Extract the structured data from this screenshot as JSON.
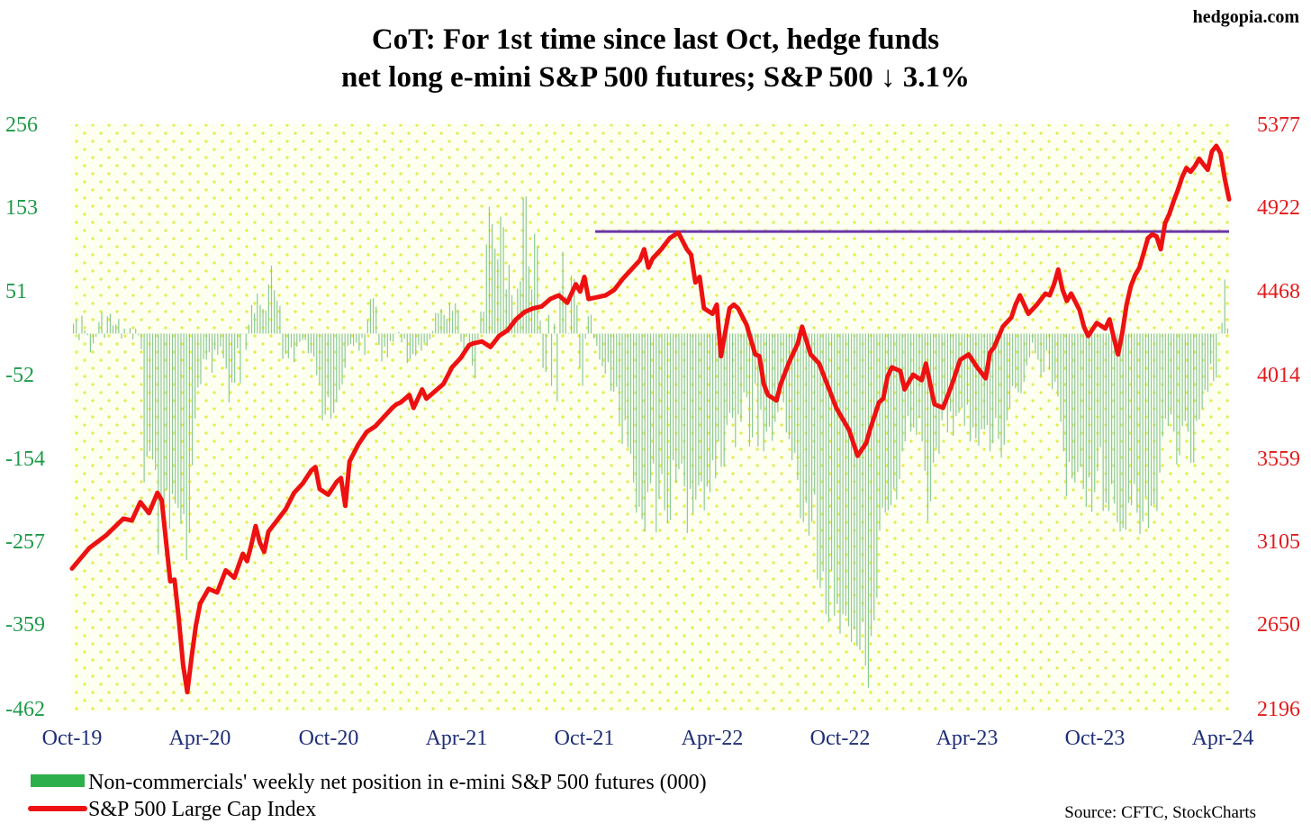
{
  "chart_data": {
    "type": "bar+line",
    "title_lines": [
      "CoT: For 1st time since last Oct, hedge funds",
      "net long e-mini S&P 500 futures; S&P 500 ↓ 3.1%"
    ],
    "brand": "hedgopia.com",
    "source": "Source: CFTC, StockCharts",
    "left_axis": {
      "ticks": [
        "256",
        "153",
        "51",
        "-52",
        "-154",
        "-257",
        "-359",
        "-462"
      ],
      "ylim": [
        -462,
        256
      ],
      "color": "#1e9a4a"
    },
    "right_axis": {
      "ticks": [
        "5377",
        "4922",
        "4468",
        "4014",
        "3559",
        "3105",
        "2650",
        "2196"
      ],
      "ylim": [
        2196,
        5377
      ],
      "color": "#e31b1b"
    },
    "x_labels": [
      "Oct-19",
      "Apr-20",
      "Oct-20",
      "Apr-21",
      "Oct-21",
      "Apr-22",
      "Oct-22",
      "Apr-23",
      "Oct-23",
      "Apr-24"
    ],
    "x_range_weeks": [
      0,
      230
    ],
    "horizontal_line": {
      "value_right": 4796,
      "from_week": 104,
      "to_week": 230,
      "color": "#6a35a8"
    },
    "legend": [
      {
        "label": "Non-commercials' weekly net position in e-mini S&P 500 futures (000)",
        "color": "#2db04b"
      },
      {
        "label": "S&P 500 Large Cap Index",
        "color": "#ee1111"
      }
    ],
    "series": [
      {
        "name": "Non-commercials' weekly net position in e-mini S&P 500 futures (000)",
        "axis": "left",
        "kind": "bar",
        "color": "#8cc99a",
        "weekly_values": [
          12,
          17,
          -8,
          22,
          4,
          -2,
          -23,
          -12,
          -4,
          14,
          26,
          -5,
          21,
          24,
          10,
          11,
          18,
          -6,
          6,
          0,
          7,
          -7,
          6,
          -2,
          -19,
          -182,
          -151,
          -144,
          -154,
          -167,
          -270,
          -205,
          -224,
          -191,
          -239,
          -196,
          -208,
          -213,
          -233,
          -221,
          -277,
          -244,
          -161,
          -104,
          -66,
          -62,
          -31,
          -32,
          -23,
          -48,
          -20,
          -26,
          -16,
          -30,
          -43,
          -84,
          -60,
          -60,
          -18,
          -61,
          0,
          -20,
          11,
          35,
          25,
          49,
          35,
          30,
          28,
          60,
          83,
          53,
          40,
          34,
          -31,
          -25,
          -30,
          -17,
          -35,
          -16,
          -10,
          -8,
          -8,
          -24,
          -24,
          -28,
          -51,
          -62,
          -106,
          -99,
          -78,
          -104,
          -97,
          -84,
          -69,
          -62,
          -42,
          -15,
          -13,
          -15,
          -11,
          -21,
          -5,
          -26,
          17,
          42,
          43,
          33,
          -14,
          -34,
          -16,
          -29,
          -9,
          -10,
          0,
          2,
          -11,
          -6,
          -36,
          -31,
          -25,
          -27,
          -14,
          -21,
          -11,
          -15,
          -7,
          3,
          25,
          25,
          30,
          23,
          18,
          37,
          28,
          37,
          29,
          -10,
          -31,
          -2,
          -11,
          -39,
          -55,
          -7,
          27,
          27,
          109,
          155,
          134,
          104,
          91,
          143,
          130,
          54,
          84,
          47,
          13,
          55,
          64,
          166,
          168,
          82,
          54,
          122,
          107,
          16,
          -42,
          -47,
          23,
          -64,
          12,
          -83,
          52,
          100,
          46,
          0,
          71,
          67,
          35,
          -42,
          -64,
          -6,
          21,
          23,
          -6,
          -15,
          -32,
          -40,
          -49,
          -35,
          -70,
          -71,
          -65,
          -110,
          -135,
          -106,
          -139,
          -147,
          -182,
          -219,
          -212,
          -227,
          -242,
          -194,
          -183,
          -159,
          -243,
          -202,
          -172,
          -216,
          -232,
          -228,
          -155,
          -182,
          -166,
          -159,
          -187,
          -244,
          -190,
          -220,
          -203,
          -186,
          -181,
          -216,
          -187,
          -194,
          -155,
          -177,
          -132,
          -163,
          -162,
          -112,
          -97,
          -103,
          -139,
          -99,
          -108,
          -72,
          -78,
          -138,
          -127,
          -61,
          -138,
          -93,
          -144,
          -120,
          -114,
          -131,
          -108,
          -96,
          -70,
          -84,
          -121,
          -129,
          -155,
          -146,
          -179,
          -226,
          -231,
          -207,
          -247,
          -230,
          -197,
          -301,
          -311,
          -291,
          -343,
          -353,
          -290,
          -345,
          -331,
          -367,
          -343,
          -345,
          -358,
          -377,
          -362,
          -382,
          -387,
          -353,
          -406,
          -433,
          -370,
          -351,
          -323,
          -241,
          -213,
          -219,
          -216,
          -210,
          -190,
          -203,
          -178,
          -144,
          -132,
          -101,
          -120,
          -115,
          -124,
          -103,
          -132,
          -168,
          -229,
          -205,
          -158,
          -140,
          -147,
          -106,
          -77,
          -121,
          -95,
          -125,
          -101,
          -97,
          -91,
          -113,
          -87,
          -132,
          -115,
          -128,
          -137,
          -117,
          -117,
          -112,
          -144,
          -134,
          -103,
          -129,
          -152,
          -136,
          -106,
          -92,
          -64,
          -67,
          -72,
          -73,
          -59,
          -39,
          -29,
          -11,
          -24,
          -32,
          -52,
          -47,
          -21,
          -44,
          -68,
          -59,
          -77,
          -108,
          -144,
          -199,
          -157,
          -177,
          -182,
          -169,
          -163,
          -190,
          -212,
          -176,
          -218,
          -194,
          -168,
          -139,
          -217,
          -207,
          -217,
          -184,
          -208,
          -231,
          -242,
          -238,
          -240,
          -207,
          -210,
          -184,
          -219,
          -245,
          -230,
          -200,
          -238,
          -211,
          -209,
          -217,
          -170,
          -126,
          -104,
          -113,
          -99,
          -120,
          -160,
          -149,
          -113,
          -107,
          -120,
          -158,
          -158,
          -107,
          -105,
          -92,
          -69,
          -71,
          -37,
          -58,
          -54,
          1,
          13,
          66,
          6
        ]
      },
      {
        "name": "S&P 500 Large Cap Index",
        "axis": "right",
        "kind": "line",
        "color": "#ee1111",
        "anchors": [
          [
            0,
            2970
          ],
          [
            4,
            3080
          ],
          [
            8,
            3150
          ],
          [
            12,
            3240
          ],
          [
            14,
            3230
          ],
          [
            16,
            3330
          ],
          [
            18,
            3270
          ],
          [
            20,
            3380
          ],
          [
            21,
            3340
          ],
          [
            23,
            2900
          ],
          [
            24,
            2910
          ],
          [
            25,
            2700
          ],
          [
            26,
            2450
          ],
          [
            27,
            2300
          ],
          [
            28,
            2490
          ],
          [
            29,
            2660
          ],
          [
            30,
            2780
          ],
          [
            32,
            2860
          ],
          [
            34,
            2840
          ],
          [
            36,
            2960
          ],
          [
            38,
            2920
          ],
          [
            40,
            3050
          ],
          [
            41,
            3010
          ],
          [
            42,
            3100
          ],
          [
            43,
            3200
          ],
          [
            44,
            3110
          ],
          [
            45,
            3060
          ],
          [
            46,
            3170
          ],
          [
            48,
            3230
          ],
          [
            50,
            3290
          ],
          [
            52,
            3380
          ],
          [
            54,
            3430
          ],
          [
            56,
            3500
          ],
          [
            57,
            3520
          ],
          [
            58,
            3400
          ],
          [
            60,
            3370
          ],
          [
            62,
            3440
          ],
          [
            63,
            3460
          ],
          [
            64,
            3310
          ],
          [
            65,
            3550
          ],
          [
            67,
            3640
          ],
          [
            69,
            3710
          ],
          [
            71,
            3740
          ],
          [
            73,
            3790
          ],
          [
            75,
            3840
          ],
          [
            76,
            3860
          ],
          [
            77,
            3870
          ],
          [
            79,
            3910
          ],
          [
            80,
            3840
          ],
          [
            82,
            3940
          ],
          [
            83,
            3890
          ],
          [
            85,
            3930
          ],
          [
            87,
            3970
          ],
          [
            89,
            4060
          ],
          [
            91,
            4110
          ],
          [
            93,
            4180
          ],
          [
            94,
            4190
          ],
          [
            96,
            4200
          ],
          [
            98,
            4170
          ],
          [
            100,
            4230
          ],
          [
            102,
            4260
          ],
          [
            104,
            4320
          ],
          [
            106,
            4360
          ],
          [
            108,
            4380
          ],
          [
            110,
            4390
          ],
          [
            112,
            4430
          ],
          [
            114,
            4450
          ],
          [
            116,
            4410
          ],
          [
            118,
            4510
          ],
          [
            119,
            4470
          ],
          [
            120,
            4550
          ],
          [
            121,
            4430
          ],
          [
            123,
            4440
          ],
          [
            125,
            4450
          ],
          [
            127,
            4480
          ],
          [
            129,
            4540
          ],
          [
            131,
            4590
          ],
          [
            133,
            4640
          ],
          [
            134,
            4700
          ],
          [
            135,
            4600
          ],
          [
            136,
            4650
          ],
          [
            138,
            4700
          ],
          [
            140,
            4760
          ],
          [
            142,
            4790
          ],
          [
            144,
            4700
          ],
          [
            145,
            4670
          ],
          [
            146,
            4520
          ],
          [
            147,
            4550
          ],
          [
            148,
            4380
          ],
          [
            150,
            4350
          ],
          [
            151,
            4400
          ],
          [
            152,
            4120
          ],
          [
            154,
            4380
          ],
          [
            155,
            4400
          ],
          [
            156,
            4380
          ],
          [
            158,
            4290
          ],
          [
            160,
            4130
          ],
          [
            161,
            4120
          ],
          [
            162,
            3970
          ],
          [
            163,
            3910
          ],
          [
            165,
            3880
          ],
          [
            166,
            3970
          ],
          [
            168,
            4090
          ],
          [
            170,
            4190
          ],
          [
            171,
            4280
          ],
          [
            173,
            4130
          ],
          [
            175,
            4080
          ],
          [
            177,
            3960
          ],
          [
            179,
            3840
          ],
          [
            180,
            3800
          ],
          [
            182,
            3720
          ],
          [
            184,
            3580
          ],
          [
            186,
            3650
          ],
          [
            187,
            3730
          ],
          [
            189,
            3870
          ],
          [
            190,
            3890
          ],
          [
            191,
            4010
          ],
          [
            192,
            4060
          ],
          [
            194,
            4040
          ],
          [
            195,
            3940
          ],
          [
            197,
            4020
          ],
          [
            199,
            3990
          ],
          [
            200,
            4080
          ],
          [
            202,
            3860
          ],
          [
            204,
            3840
          ],
          [
            206,
            3960
          ],
          [
            208,
            4100
          ],
          [
            210,
            4130
          ],
          [
            212,
            4060
          ],
          [
            214,
            4000
          ],
          [
            215,
            4140
          ],
          [
            216,
            4170
          ],
          [
            218,
            4280
          ],
          [
            220,
            4330
          ],
          [
            221,
            4400
          ],
          [
            222,
            4450
          ],
          [
            224,
            4350
          ],
          [
            226,
            4400
          ],
          [
            228,
            4460
          ],
          [
            229,
            4450
          ],
          [
            230,
            4510
          ],
          [
            231,
            4590
          ],
          [
            232,
            4480
          ],
          [
            233,
            4420
          ],
          [
            234,
            4460
          ],
          [
            236,
            4370
          ],
          [
            237,
            4280
          ],
          [
            238,
            4230
          ],
          [
            240,
            4300
          ],
          [
            242,
            4270
          ],
          [
            243,
            4320
          ],
          [
            244,
            4220
          ],
          [
            245,
            4130
          ],
          [
            246,
            4250
          ],
          [
            247,
            4400
          ],
          [
            248,
            4500
          ],
          [
            249,
            4560
          ],
          [
            250,
            4600
          ],
          [
            251,
            4680
          ],
          [
            252,
            4760
          ],
          [
            253,
            4780
          ],
          [
            254,
            4770
          ],
          [
            255,
            4700
          ],
          [
            256,
            4840
          ],
          [
            257,
            4890
          ],
          [
            258,
            4960
          ],
          [
            259,
            5020
          ],
          [
            260,
            5090
          ],
          [
            261,
            5140
          ],
          [
            262,
            5120
          ],
          [
            263,
            5150
          ],
          [
            264,
            5190
          ],
          [
            265,
            5160
          ],
          [
            266,
            5130
          ],
          [
            267,
            5230
          ],
          [
            268,
            5260
          ],
          [
            269,
            5220
          ],
          [
            270,
            5080
          ],
          [
            271,
            4970
          ]
        ]
      }
    ]
  }
}
